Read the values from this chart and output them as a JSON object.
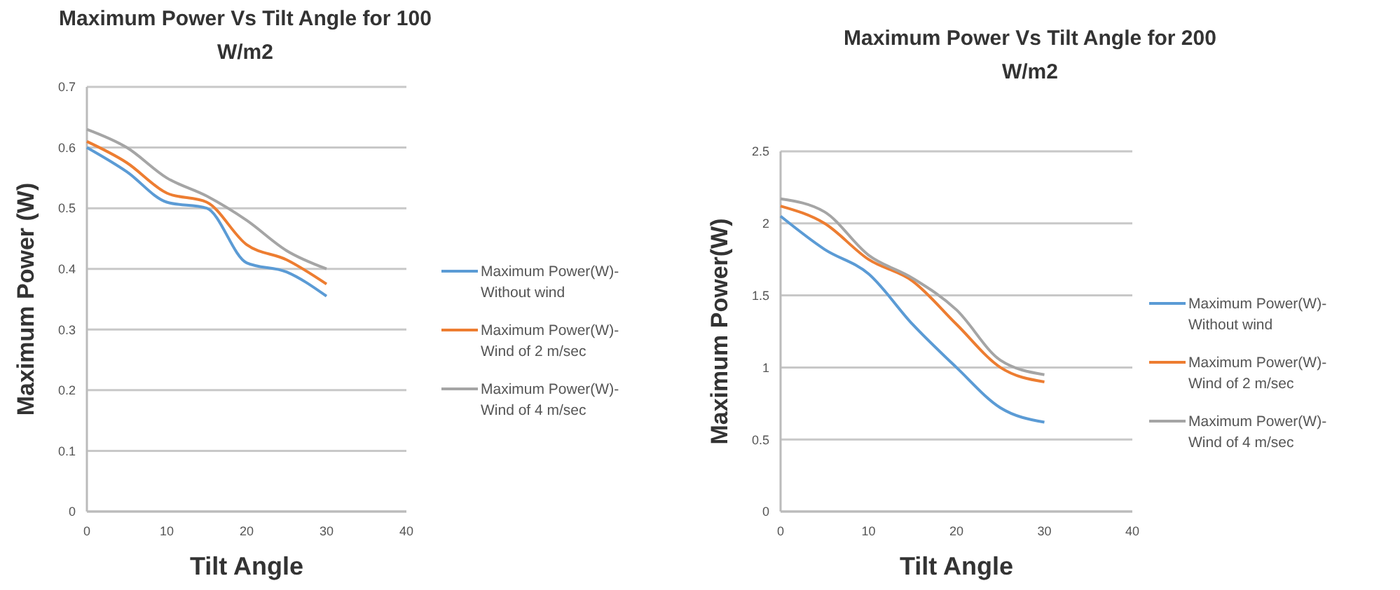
{
  "chart_data": [
    {
      "type": "line",
      "title": "Maximum Power Vs Tilt Angle for 100 W/m2",
      "xlabel": "Tilt Angle",
      "ylabel": "Maximum Power (W)",
      "x": [
        0,
        5,
        10,
        15,
        20,
        25,
        30
      ],
      "xlim": [
        0,
        40
      ],
      "xticks": [
        0,
        10,
        20,
        30,
        40
      ],
      "ylim": [
        0,
        0.7
      ],
      "yticks": [
        0,
        0.1,
        0.2,
        0.3,
        0.4,
        0.5,
        0.6,
        0.7
      ],
      "grid": "y",
      "legend": "right",
      "marker": "none",
      "line_style": "solid",
      "series": [
        {
          "name": "Maximum Power(W)-Without wind",
          "color": "#5b9bd5",
          "values": [
            0.6,
            0.56,
            0.51,
            0.5,
            0.41,
            0.395,
            0.355
          ]
        },
        {
          "name": "Maximum Power(W)-Wind of 2 m/sec",
          "color": "#ed7d31",
          "values": [
            0.61,
            0.575,
            0.525,
            0.51,
            0.44,
            0.415,
            0.375
          ]
        },
        {
          "name": "Maximum Power(W)-Wind of 4 m/sec",
          "color": "#a5a5a5",
          "values": [
            0.63,
            0.6,
            0.55,
            0.52,
            0.48,
            0.43,
            0.4
          ]
        }
      ]
    },
    {
      "type": "line",
      "title": "Maximum Power Vs Tilt Angle for 200 W/m2",
      "xlabel": "Tilt Angle",
      "ylabel": "Maximum Power(W)",
      "x": [
        0,
        5,
        10,
        15,
        20,
        25,
        30
      ],
      "xlim": [
        0,
        40
      ],
      "xticks": [
        0,
        10,
        20,
        30,
        40
      ],
      "ylim": [
        0,
        2.5
      ],
      "yticks": [
        0,
        0.5,
        1,
        1.5,
        2,
        2.5
      ],
      "grid": "y",
      "legend": "right",
      "marker": "none",
      "line_style": "solid",
      "series": [
        {
          "name": "Maximum Power(W)-Without wind",
          "color": "#5b9bd5",
          "values": [
            2.05,
            1.82,
            1.65,
            1.3,
            1.0,
            0.72,
            0.62
          ]
        },
        {
          "name": "Maximum Power(W)-Wind of 2 m/sec",
          "color": "#ed7d31",
          "values": [
            2.12,
            2.0,
            1.75,
            1.6,
            1.3,
            1.0,
            0.9
          ]
        },
        {
          "name": "Maximum Power(W)-Wind of 4 m/sec",
          "color": "#a5a5a5",
          "values": [
            2.17,
            2.08,
            1.78,
            1.62,
            1.4,
            1.05,
            0.95
          ]
        }
      ]
    }
  ]
}
